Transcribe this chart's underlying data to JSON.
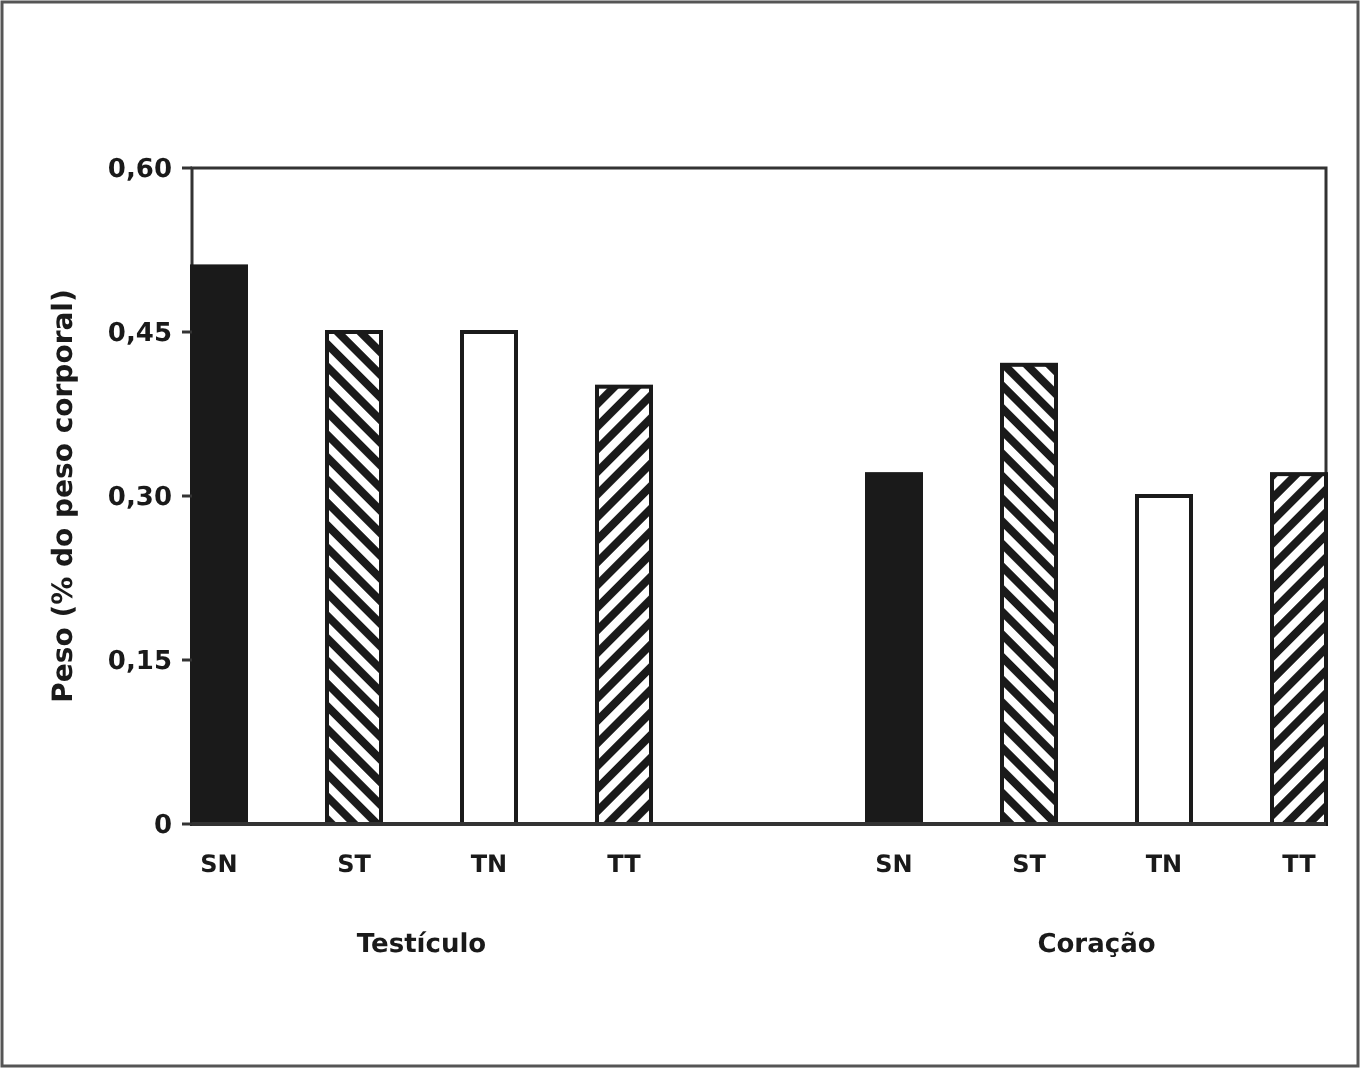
{
  "chart_data": {
    "type": "bar",
    "ylabel": "Peso (% do peso corporal)",
    "categories": [
      "Testículo",
      "Coração"
    ],
    "series": [
      {
        "name": "SN",
        "color": "#1a1a1a",
        "values": [
          0.51,
          0.32
        ]
      },
      {
        "name": "ST",
        "color": "#1a1a1a",
        "values": [
          0.45,
          0.42
        ]
      },
      {
        "name": "TN",
        "color": "#ffffff",
        "values": [
          0.45,
          0.3
        ]
      },
      {
        "name": "TT",
        "color": "#1a1a1a",
        "values": [
          0.4,
          0.32
        ]
      }
    ],
    "ylim": [
      0,
      0.6
    ],
    "yticks": [
      0,
      {
        "value": 0.15,
        "label": "0,15"
      },
      {
        "value": 0.3,
        "label": "0,30"
      },
      {
        "value": 0.45,
        "label": "0,45"
      },
      {
        "value": 0.6,
        "label": "0,60"
      }
    ],
    "grid": false,
    "legend": false
  }
}
